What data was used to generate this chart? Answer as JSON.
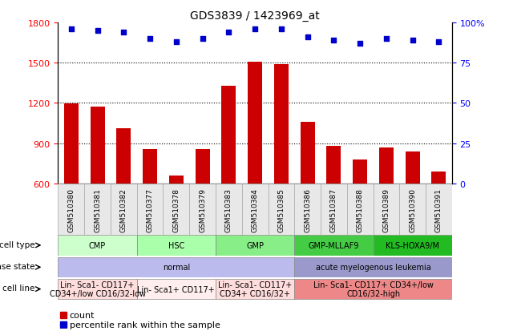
{
  "title": "GDS3839 / 1423969_at",
  "samples": [
    "GSM510380",
    "GSM510381",
    "GSM510382",
    "GSM510377",
    "GSM510378",
    "GSM510379",
    "GSM510383",
    "GSM510384",
    "GSM510385",
    "GSM510386",
    "GSM510387",
    "GSM510388",
    "GSM510389",
    "GSM510390",
    "GSM510391"
  ],
  "counts": [
    1195,
    1175,
    1010,
    855,
    660,
    855,
    1330,
    1510,
    1490,
    1060,
    880,
    775,
    870,
    840,
    690
  ],
  "percentile_ranks": [
    96,
    95,
    94,
    90,
    88,
    90,
    94,
    96,
    96,
    91,
    89,
    87,
    90,
    89,
    88
  ],
  "y_min": 600,
  "y_max": 1800,
  "y_ticks": [
    600,
    900,
    1200,
    1500,
    1800
  ],
  "y2_ticks": [
    0,
    25,
    50,
    75,
    100
  ],
  "bar_color": "#cc0000",
  "dot_color": "#0000cc",
  "cell_type_groups": [
    {
      "name": "CMP",
      "start": 0,
      "end": 2,
      "color": "#ccffcc"
    },
    {
      "name": "HSC",
      "start": 3,
      "end": 5,
      "color": "#aaffaa"
    },
    {
      "name": "GMP",
      "start": 6,
      "end": 8,
      "color": "#88ee88"
    },
    {
      "name": "GMP-MLLAF9",
      "start": 9,
      "end": 11,
      "color": "#44cc44"
    },
    {
      "name": "KLS-HOXA9/M",
      "start": 12,
      "end": 14,
      "color": "#22bb22"
    }
  ],
  "disease_state_groups": [
    {
      "name": "normal",
      "start": 0,
      "end": 8,
      "color": "#bbbbee"
    },
    {
      "name": "acute myelogenous leukemia",
      "start": 9,
      "end": 14,
      "color": "#9999cc"
    }
  ],
  "cell_line_groups": [
    {
      "name": "Lin- Sca1- CD117+\nCD34+/low CD16/32-low",
      "start": 0,
      "end": 2,
      "color": "#ffdddd"
    },
    {
      "name": "Lin- Sca1+ CD117+",
      "start": 3,
      "end": 5,
      "color": "#ffeeee"
    },
    {
      "name": "Lin- Sca1- CD117+\nCD34+ CD16/32+",
      "start": 6,
      "end": 8,
      "color": "#ffdddd"
    },
    {
      "name": "Lin- Sca1- CD117+ CD34+/low\nCD16/32-high",
      "start": 9,
      "end": 14,
      "color": "#ee8888"
    }
  ],
  "legend_count_color": "#cc0000",
  "legend_dot_color": "#0000cc"
}
